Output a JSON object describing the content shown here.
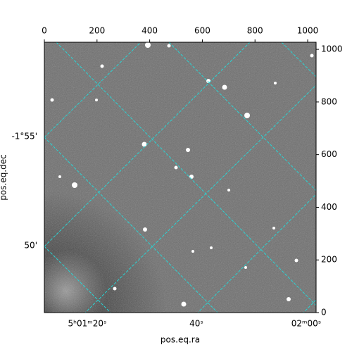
{
  "chart_data": {
    "type": "image",
    "xlabel": "pos.eq.ra",
    "ylabel": "pos.eq.dec",
    "xlim": [
      0,
      1032
    ],
    "ylim": [
      0,
      1027
    ],
    "xticks": [
      0,
      200,
      400,
      600,
      800,
      1000
    ],
    "yticks": [
      0,
      200,
      400,
      600,
      800,
      1000
    ],
    "ra_labels": [
      "5ʰ01ᵐ20ˢ",
      "40ˢ",
      "02ᵐ00ˢ"
    ],
    "dec_labels": [
      "-1°55'",
      "50'"
    ]
  }
}
